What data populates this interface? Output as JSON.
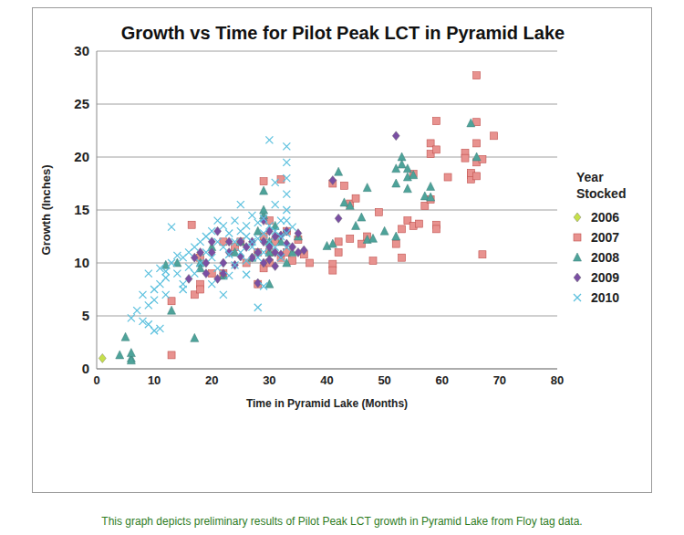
{
  "chart_data": {
    "type": "scatter",
    "title": "Growth vs Time for Pilot Peak LCT in Pyramid Lake",
    "x_label": "Time in Pyramid Lake (Months)",
    "y_label": "Growth (Inches)",
    "legend_title": "Year Stocked",
    "caption": "This graph depicts preliminary results of Pilot Peak LCT growth in Pyramid Lake from Floy tag data.",
    "xlim": [
      0,
      80
    ],
    "xticks": [
      0,
      10,
      20,
      30,
      40,
      50,
      60,
      70,
      80
    ],
    "ylim": [
      0,
      30
    ],
    "yticks": [
      0,
      5,
      10,
      15,
      20,
      25,
      30
    ],
    "grid": true,
    "legend": "right",
    "series": [
      {
        "name": "2006",
        "color": "#c6e04a",
        "marker": "diamond",
        "x": [
          1
        ],
        "values": [
          1
        ]
      },
      {
        "name": "2007",
        "color": "#e8928f",
        "marker": "square",
        "x": [
          13,
          13,
          16.5,
          17,
          18,
          18,
          18,
          20,
          22,
          22,
          24,
          25,
          26,
          28,
          28,
          29,
          29,
          29,
          30,
          30,
          30,
          31,
          32,
          32,
          33,
          33,
          34,
          35,
          36,
          37,
          41,
          41,
          41,
          42,
          42,
          43,
          44,
          44,
          45,
          46,
          47,
          48,
          49,
          52,
          53,
          53,
          54,
          55,
          55,
          56,
          57,
          58,
          58,
          58,
          59,
          59,
          59,
          59,
          61,
          64,
          64,
          65,
          65,
          65,
          66,
          66,
          66,
          66,
          66,
          67,
          67,
          69
        ],
        "values": [
          1.3,
          6.4,
          13.6,
          7,
          10.5,
          8,
          7.5,
          9,
          12,
          9,
          11.5,
          12,
          10,
          11,
          8,
          17.7,
          9.5,
          12.5,
          14,
          11,
          10,
          12,
          17.9,
          10.5,
          11,
          13,
          10.2,
          12.2,
          10.8,
          10,
          9.9,
          9.3,
          17.5,
          11,
          12,
          17.3,
          12.3,
          15.6,
          16.1,
          11.8,
          12.5,
          10.2,
          14.8,
          11.8,
          13.2,
          10.5,
          14,
          18.4,
          13.5,
          13.7,
          15.4,
          16,
          20.3,
          21.3,
          23.4,
          20.7,
          13.6,
          13.2,
          18.1,
          20.4,
          19.9,
          18.3,
          17.9,
          18.5,
          27.7,
          23.3,
          21.3,
          18.2,
          19.5,
          19.8,
          10.8,
          22
        ]
      },
      {
        "name": "2008",
        "color": "#4ea39a",
        "marker": "triangle",
        "x": [
          4,
          5,
          6,
          6,
          6,
          12,
          13,
          14,
          17,
          18,
          18,
          20,
          22,
          24,
          25,
          27,
          28,
          29,
          29,
          29,
          30,
          30,
          30,
          31,
          32,
          33,
          34,
          35,
          40,
          41,
          42,
          43,
          44,
          45,
          46,
          47,
          47,
          48,
          50,
          52,
          52,
          52,
          53,
          53,
          54,
          54,
          54,
          55,
          57,
          58,
          58,
          65,
          66
        ],
        "values": [
          1.3,
          3,
          1,
          0.8,
          1.5,
          9.8,
          5.5,
          10,
          2.9,
          10,
          9.5,
          11.5,
          8.8,
          11,
          12,
          10.5,
          13,
          16.8,
          14.5,
          15,
          8,
          12,
          11,
          13.5,
          12,
          10,
          11,
          12.5,
          11.6,
          11.8,
          18.6,
          15.7,
          15.4,
          13.5,
          14.3,
          12.2,
          17.1,
          12.3,
          13,
          12.5,
          17.5,
          18.9,
          20,
          19.3,
          18.1,
          18.9,
          17,
          18.3,
          16.3,
          17.2,
          16.2,
          23.2,
          20
        ]
      },
      {
        "name": "2009",
        "color": "#7a4fa3",
        "marker": "diamond",
        "x": [
          16,
          17,
          18,
          19,
          19,
          20,
          20,
          21,
          21,
          22,
          22,
          23,
          23,
          24,
          25,
          25,
          26,
          27,
          27,
          28,
          28,
          29,
          29,
          29,
          30,
          30,
          30,
          31,
          31,
          31,
          32,
          32,
          33,
          33,
          34,
          35,
          35,
          36,
          41,
          42,
          52
        ],
        "values": [
          8.5,
          10.5,
          11,
          9,
          10,
          11,
          12,
          13,
          8.5,
          9,
          10,
          12,
          11,
          9.8,
          12,
          10.6,
          11.5,
          12,
          10.5,
          11,
          8.1,
          12,
          10,
          14,
          13,
          11.5,
          10.3,
          9.7,
          12.5,
          11,
          12.6,
          10.8,
          11.8,
          13,
          11.5,
          12.8,
          11,
          11.2,
          17.8,
          14.2,
          22
        ]
      },
      {
        "name": "2010",
        "color": "#5bc0de",
        "marker": "x",
        "x": [
          8,
          8,
          9,
          9,
          9,
          10,
          10,
          11,
          11,
          11,
          12,
          12,
          13,
          13,
          14,
          14,
          15,
          15,
          16,
          16,
          17,
          17,
          18,
          18,
          19,
          19,
          20,
          20,
          20,
          21,
          21,
          21,
          22,
          22,
          22,
          23,
          23,
          24,
          24,
          24,
          25,
          25,
          25,
          26,
          26,
          26,
          27,
          27,
          27,
          28,
          28,
          28,
          28,
          29,
          29,
          29,
          30,
          30,
          30,
          31,
          31,
          31,
          31,
          32,
          32,
          33,
          33,
          33,
          33,
          33,
          33,
          33,
          33,
          34,
          6,
          7,
          10,
          12,
          15,
          23,
          26,
          29,
          32
        ],
        "values": [
          4.5,
          7,
          9,
          6,
          4.2,
          3.6,
          7.5,
          3.8,
          8,
          9.5,
          8.6,
          7,
          13.4,
          10,
          9,
          10.7,
          8,
          10.5,
          9.6,
          11,
          11.5,
          9,
          12,
          10,
          12.5,
          11,
          13,
          10.5,
          8,
          12,
          14,
          9.5,
          13.5,
          11.5,
          7,
          12.8,
          10.8,
          14,
          12,
          9.8,
          15.5,
          13,
          11,
          13.5,
          12.5,
          10.2,
          14.5,
          12,
          11.5,
          13.8,
          12.3,
          5.8,
          10.5,
          14.2,
          12.8,
          11,
          21.6,
          13.5,
          12,
          15.5,
          17.6,
          13,
          11.5,
          14,
          12.5,
          21,
          19.5,
          18,
          16.5,
          15,
          14,
          12.8,
          11.5,
          13.4,
          4.8,
          5.5,
          6.5,
          9.2,
          7.5,
          8.8,
          8.9,
          7.8,
          10.5
        ]
      }
    ]
  }
}
